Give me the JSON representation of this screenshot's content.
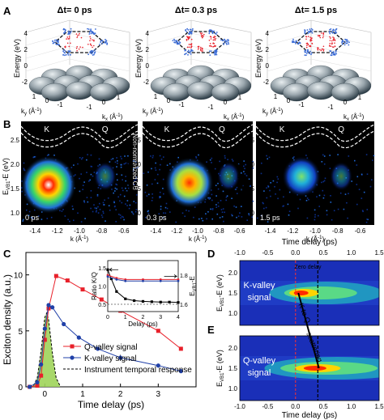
{
  "panels": {
    "A": {
      "label": "A",
      "titles": [
        "Δt= 0 ps",
        "Δt= 0.3 ps",
        "Δt= 1.5 ps"
      ],
      "zlabel": "Energy (eV)",
      "ztick_labels": [
        "4",
        "2",
        "0",
        "-2"
      ],
      "ky_label": "k",
      "ky_sub": "y",
      "ky_unit": " (Å",
      "kx_label": "k",
      "kx_sub": "x",
      "kx_unit": " (Å",
      "inv_exp": "-1",
      "ky_ticks": [
        "1",
        "0",
        "-1"
      ],
      "kx_ticks": [
        "-1",
        "0",
        "1"
      ]
    },
    "B": {
      "label": "B",
      "ylabel_main": "E",
      "ylabel_sub": "VB1",
      "ylabel_tail": "-E (eV)",
      "yticks": [
        "2.5",
        "2.0",
        "1.5",
        "1.0"
      ],
      "xlabel": "k (Å",
      "xlabel_exp": "-1",
      "xlabel_tail": ")",
      "xticks": [
        "-1.4",
        "-1.2",
        "-1.0",
        "-0.8",
        "-0.6"
      ],
      "valley_K": "K",
      "valley_Q": "Q",
      "cb_note": "Non-normalized CB",
      "times": [
        "0 ps",
        "0.3 ps",
        "1.5 ps"
      ]
    },
    "C": {
      "label": "C",
      "legend": [
        "Q-valley signal",
        "K-valley signal",
        "Instrument temporal response"
      ],
      "inset_xlabel": "Delay (ps)",
      "inset_ylabel_left": "Ratio K/Q",
      "inset_ylabel_right_main": "E",
      "inset_ylabel_right_sub": "VB1",
      "inset_ylabel_right_tail": "-E",
      "inset_yticks_left": [
        "1.5",
        "1.0",
        "0.5"
      ],
      "inset_yticks_right": [
        "1.8",
        "1.6"
      ],
      "inset_xticks": [
        "0",
        "1",
        "2",
        "3",
        "4"
      ]
    },
    "D": {
      "label": "D",
      "signal_label": [
        "K-valley",
        "signal"
      ],
      "zero_delay": "Zero delay",
      "k_to_q": "K to Q",
      "scattering": "scattering",
      "ylabel_main": "E",
      "ylabel_sub": "VB1",
      "ylabel_tail": "-E (eV)",
      "yticks": [
        "2.0",
        "1.5",
        "1.0"
      ]
    },
    "E": {
      "label": "E",
      "signal_label": [
        "Q-valley",
        "signal"
      ],
      "ylabel_main": "E",
      "ylabel_sub": "VB1",
      "ylabel_tail": "-E (eV)",
      "yticks": [
        "2.0",
        "1.5",
        "1.0"
      ]
    },
    "DE_axis": {
      "top_label": "Time delay (ps)",
      "bottom_label": "Time delay (ps)",
      "xticks": [
        "-1.0",
        "-0.5",
        "0.0",
        "0.5",
        "1.0",
        "1.5"
      ]
    }
  },
  "chart_data": [
    {
      "type": "line",
      "panel": "C",
      "xlabel": "Time delay (ps)",
      "ylabel": "Exciton density (a.u.)",
      "xlim": [
        -0.5,
        4.0
      ],
      "ylim": [
        0,
        12
      ],
      "xticks": [
        0,
        1,
        2,
        3
      ],
      "yticks": [
        0,
        5,
        10
      ],
      "series": [
        {
          "name": "Q-valley signal",
          "color": "#e8202a",
          "marker": "square",
          "x": [
            -0.4,
            -0.2,
            -0.1,
            0.0,
            0.1,
            0.3,
            0.6,
            1.0,
            1.5,
            2.0,
            3.0,
            3.6
          ],
          "y": [
            0.0,
            0.1,
            1.0,
            4.2,
            7.0,
            9.9,
            9.5,
            8.7,
            7.8,
            6.8,
            5.0,
            3.4
          ]
        },
        {
          "name": "K-valley signal",
          "color": "#2040a8",
          "marker": "circle",
          "x": [
            -0.4,
            -0.2,
            -0.1,
            0.0,
            0.1,
            0.2,
            0.5,
            0.9,
            1.4,
            2.0,
            3.0,
            3.6
          ],
          "y": [
            0.0,
            0.4,
            2.0,
            5.2,
            7.3,
            7.1,
            5.6,
            4.4,
            3.4,
            2.6,
            1.9,
            1.4
          ]
        },
        {
          "name": "Instrument temporal response",
          "color": "#000000",
          "style": "dashed",
          "x": [
            -0.4,
            -0.3,
            -0.2,
            -0.1,
            0.0,
            0.05,
            0.1,
            0.2,
            0.3,
            0.4
          ],
          "y": [
            0.0,
            0.1,
            0.8,
            3.2,
            6.2,
            6.6,
            6.0,
            3.0,
            0.8,
            0.1
          ]
        }
      ]
    },
    {
      "type": "line",
      "panel": "C-inset",
      "xlabel": "Delay (ps)",
      "ylabel": "Ratio K/Q",
      "xlim": [
        0,
        4
      ],
      "ylim_left": [
        0.3,
        1.7
      ],
      "ylim_right": [
        1.55,
        1.9
      ],
      "series": [
        {
          "name": "Ratio K/Q",
          "color": "#000000",
          "marker": "square",
          "x": [
            0.0,
            0.2,
            0.5,
            1.0,
            1.5,
            2.0,
            2.5,
            3.0,
            3.5,
            4.0
          ],
          "y": [
            1.45,
            1.2,
            0.85,
            0.65,
            0.6,
            0.58,
            0.57,
            0.56,
            0.56,
            0.55
          ]
        },
        {
          "name": "K",
          "color": "#e8202a",
          "x": [
            0.0,
            0.5,
            1.0,
            2.0,
            3.0,
            4.0
          ],
          "y": [
            1.8,
            1.78,
            1.77,
            1.77,
            1.77,
            1.77
          ]
        },
        {
          "name": "Q",
          "color": "#2040a8",
          "x": [
            0.0,
            0.5,
            1.0,
            2.0,
            3.0,
            4.0
          ],
          "y": [
            1.79,
            1.77,
            1.76,
            1.76,
            1.76,
            1.76
          ]
        }
      ]
    }
  ]
}
